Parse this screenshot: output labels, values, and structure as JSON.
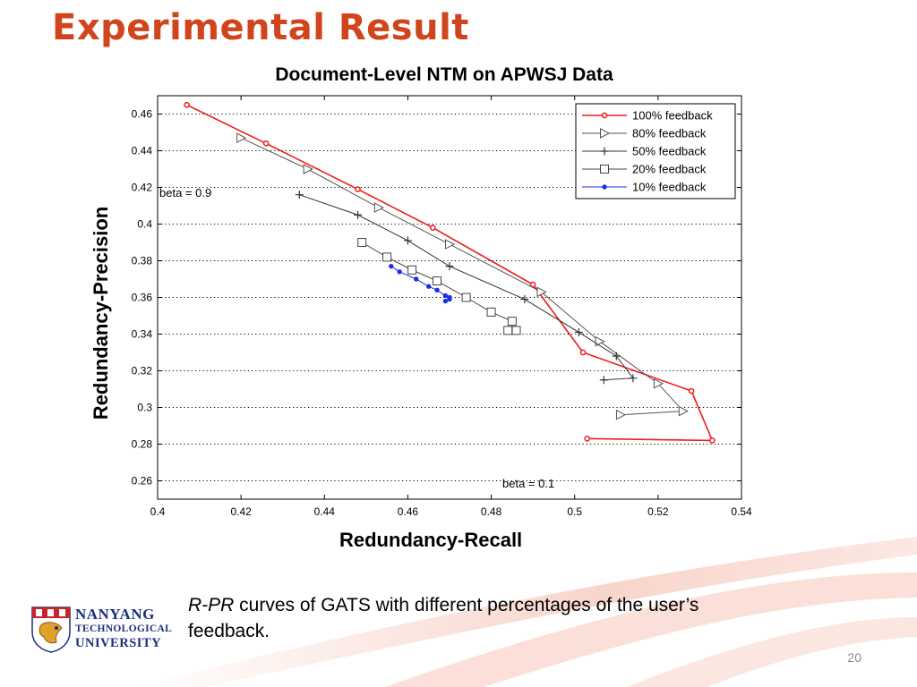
{
  "slide": {
    "title": "Experimental Result",
    "caption_italic": "R-PR",
    "caption_rest": " curves of GATS with different percentages of the user’s feedback.",
    "page_number": "20",
    "logo_text": [
      "NANYANG",
      "TECHNOLOGICAL",
      "UNIVERSITY"
    ]
  },
  "chart_data": {
    "type": "line",
    "title": "Document-Level NTM on APWSJ Data",
    "xlabel": "Redundancy-Recall",
    "ylabel": "Redundancy-Precision",
    "xlim": [
      0.4,
      0.54
    ],
    "ylim": [
      0.25,
      0.47
    ],
    "xticks": [
      "0.4",
      "0.42",
      "0.44",
      "0.46",
      "0.48",
      "0.5",
      "0.52",
      "0.54"
    ],
    "yticks": [
      "0.26",
      "0.28",
      "0.3",
      "0.32",
      "0.34",
      "0.36",
      "0.38",
      "0.4",
      "0.42",
      "0.44",
      "0.46"
    ],
    "grid": true,
    "legend_position": "top-right",
    "annotations": [
      "beta = 0.9",
      "beta = 0.1"
    ],
    "series": [
      {
        "name": "100% feedback",
        "color": "#ee1c1c",
        "marker": "circle",
        "points": [
          [
            0.407,
            0.465
          ],
          [
            0.426,
            0.444
          ],
          [
            0.448,
            0.419
          ],
          [
            0.466,
            0.398
          ],
          [
            0.49,
            0.367
          ],
          [
            0.502,
            0.33
          ],
          [
            0.528,
            0.309
          ],
          [
            0.533,
            0.282
          ],
          [
            0.503,
            0.283
          ]
        ]
      },
      {
        "name": "80% feedback",
        "color": "#555555",
        "marker": "triangle-right",
        "points": [
          [
            0.42,
            0.447
          ],
          [
            0.436,
            0.43
          ],
          [
            0.453,
            0.409
          ],
          [
            0.47,
            0.389
          ],
          [
            0.492,
            0.363
          ],
          [
            0.506,
            0.336
          ],
          [
            0.52,
            0.313
          ],
          [
            0.526,
            0.298
          ],
          [
            0.511,
            0.296
          ]
        ]
      },
      {
        "name": "50% feedback",
        "color": "#333333",
        "marker": "plus",
        "points": [
          [
            0.434,
            0.416
          ],
          [
            0.448,
            0.405
          ],
          [
            0.46,
            0.391
          ],
          [
            0.47,
            0.377
          ],
          [
            0.488,
            0.359
          ],
          [
            0.501,
            0.341
          ],
          [
            0.51,
            0.328
          ],
          [
            0.514,
            0.316
          ],
          [
            0.507,
            0.315
          ]
        ]
      },
      {
        "name": "20% feedback",
        "color": "#444444",
        "marker": "square",
        "points": [
          [
            0.449,
            0.39
          ],
          [
            0.455,
            0.382
          ],
          [
            0.461,
            0.375
          ],
          [
            0.467,
            0.369
          ],
          [
            0.474,
            0.36
          ],
          [
            0.48,
            0.352
          ],
          [
            0.485,
            0.347
          ],
          [
            0.486,
            0.342
          ],
          [
            0.484,
            0.342
          ]
        ]
      },
      {
        "name": "10% feedback",
        "color": "#1b2fe6",
        "marker": "dot",
        "points": [
          [
            0.456,
            0.377
          ],
          [
            0.458,
            0.374
          ],
          [
            0.462,
            0.37
          ],
          [
            0.465,
            0.366
          ],
          [
            0.467,
            0.364
          ],
          [
            0.469,
            0.361
          ],
          [
            0.47,
            0.359
          ],
          [
            0.47,
            0.36
          ],
          [
            0.469,
            0.358
          ]
        ]
      }
    ]
  }
}
